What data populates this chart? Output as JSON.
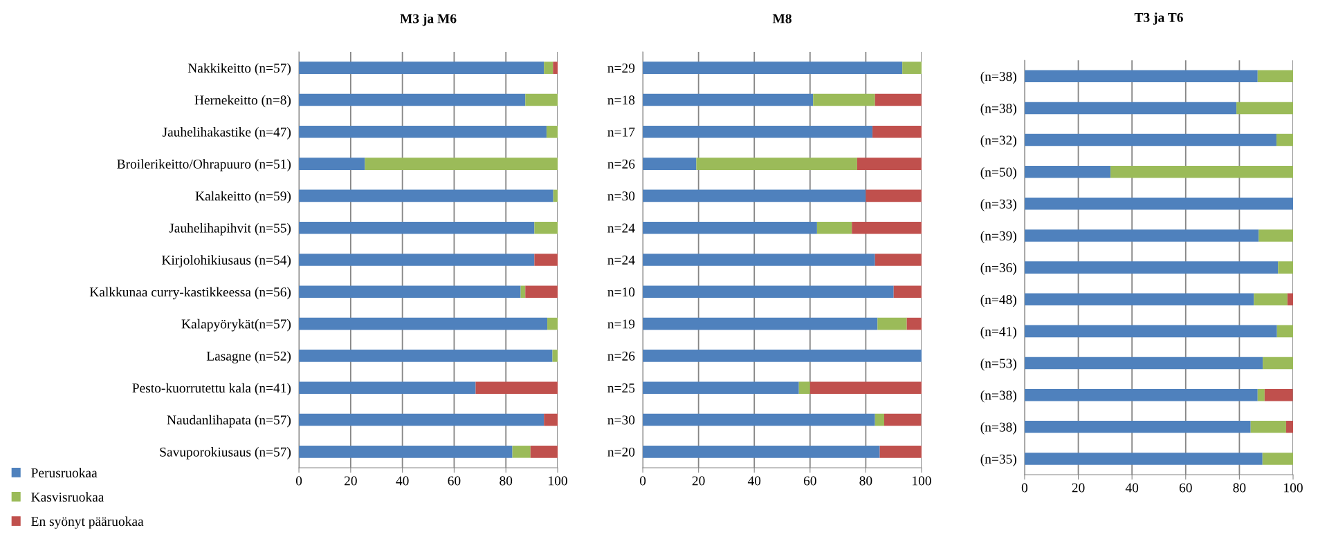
{
  "chart_data": [
    {
      "type": "bar",
      "orientation": "horizontal",
      "stacked": true,
      "title": "M3 ja M6",
      "categories": [
        "Nakkikeitto (n=57)",
        "Hernekeitto (n=8)",
        "Jauhelihakastike (n=47)",
        "Broilerikeitto/Ohrapuuro (n=51)",
        "Kalakeitto (n=59)",
        "Jauhelihapihvit (n=55)",
        "Kirjolohikiusaus (n=54)",
        "Kalkkunaa curry-kastikkeessa (n=56)",
        "Kalapyörykät(n=57)",
        "Lasagne (n=52)",
        "Pesto-kuorrutettu kala (n=41)",
        "Naudanlihapata (n=57)",
        "Savuporokiusaus (n=57)"
      ],
      "series": [
        {
          "name": "Perusruokaa",
          "color": "#4f81bd",
          "values": [
            94.7,
            87.5,
            95.7,
            25.5,
            98.3,
            91,
            91,
            85.7,
            96,
            98,
            68.3,
            94.7,
            82.5
          ]
        },
        {
          "name": "Kasvisruokaa",
          "color": "#9bbb59",
          "values": [
            3.5,
            12.5,
            4.3,
            74.5,
            1.7,
            9,
            0,
            1.8,
            4,
            2,
            0,
            0,
            7
          ]
        },
        {
          "name": "En syönyt pääruokaa",
          "color": "#c0504d",
          "values": [
            1.8,
            0,
            0,
            0,
            0,
            0,
            9,
            12.5,
            0,
            0,
            31.7,
            5.3,
            10.5
          ]
        }
      ],
      "xlim": [
        0,
        100
      ],
      "xticks": [
        0,
        20,
        40,
        60,
        80,
        100
      ],
      "grid": "x",
      "legend": "bottom left"
    },
    {
      "type": "bar",
      "orientation": "horizontal",
      "stacked": true,
      "title": "M8",
      "categories": [
        "n=29",
        "n=18",
        "n=17",
        "n=26",
        "n=30",
        "n=24",
        "n=24",
        "n=10",
        "n=19",
        "n=26",
        "n=25",
        "n=30",
        "n=20"
      ],
      "series": [
        {
          "color": "#4f81bd",
          "values": [
            93.1,
            61.1,
            82.4,
            19.2,
            80,
            62.5,
            83.3,
            90,
            84.2,
            100,
            56,
            83.3,
            85
          ]
        },
        {
          "color": "#9bbb59",
          "values": [
            6.9,
            22.2,
            0,
            57.7,
            0,
            12.5,
            0,
            0,
            10.5,
            0,
            4,
            3.3,
            0
          ]
        },
        {
          "color": "#c0504d",
          "values": [
            0,
            16.7,
            17.6,
            23.1,
            20,
            25,
            16.7,
            10,
            5.3,
            0,
            40,
            13.3,
            15
          ]
        }
      ],
      "xlim": [
        0,
        100
      ],
      "xticks": [
        0,
        20,
        40,
        60,
        80,
        100
      ],
      "grid": "x"
    },
    {
      "type": "bar",
      "orientation": "horizontal",
      "stacked": true,
      "title": "T3 ja T6",
      "categories": [
        "(n=38)",
        "(n=38)",
        "(n=32)",
        "(n=50)",
        "(n=33)",
        "(n=39)",
        "(n=36)",
        "(n=48)",
        "(n=41)",
        "(n=53)",
        "(n=38)",
        "(n=38)",
        "(n=35)"
      ],
      "series": [
        {
          "color": "#4f81bd",
          "values": [
            86.8,
            78.9,
            93.8,
            32,
            100,
            87.2,
            94.4,
            85.4,
            94,
            88.7,
            86.8,
            84.2,
            88.6
          ]
        },
        {
          "color": "#9bbb59",
          "values": [
            13.2,
            21.1,
            6.2,
            68,
            0,
            12.8,
            5.6,
            12.5,
            6,
            11.3,
            2.6,
            13.2,
            11.4
          ]
        },
        {
          "color": "#c0504d",
          "values": [
            0,
            0,
            0,
            0,
            0,
            0,
            0,
            2.1,
            0,
            0,
            10.5,
            2.6,
            0
          ]
        }
      ],
      "xlim": [
        0,
        100
      ],
      "xticks": [
        0,
        20,
        40,
        60,
        80,
        100
      ],
      "grid": "x"
    }
  ]
}
